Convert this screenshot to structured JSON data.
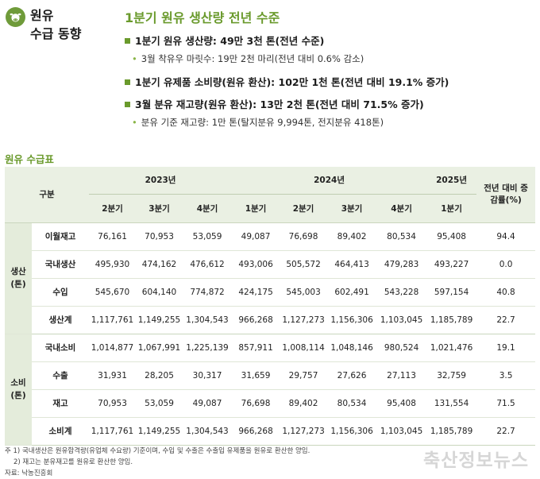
{
  "side": {
    "title_line1": "원유",
    "title_line2": "수급 동향"
  },
  "headline": "1분기 원유 생산량 전년 수준",
  "bullets": {
    "b1": "1분기 원유 생산량: 49만 3천 톤(전년 수준)",
    "b1_sub": "3월 착유우 마릿수: 19만 2천 마리(전년 대비 0.6% 감소)",
    "b2": "1분기 유제품 소비량(원유 환산): 102만 1천 톤(전년 대비 19.1% 증가)",
    "b3": "3월 분유 재고량(원유 환산): 13만 2천 톤(전년 대비 71.5% 증가)",
    "b3_sub": "분유 기준 재고량: 1만 톤(탈지분유 9,994톤, 전지분유 418톤)"
  },
  "table": {
    "title": "원유 수급표",
    "header": {
      "col_label": "구분",
      "y2023": "2023년",
      "y2024": "2024년",
      "y2025": "2025년",
      "change": "전년 대비 증감률(%)",
      "q": {
        "q2_23": "2분기",
        "q3_23": "3분기",
        "q4_23": "4분기",
        "q1_24": "1분기",
        "q2_24": "2분기",
        "q3_24": "3분기",
        "q4_24": "4분기",
        "q1_25": "1분기"
      }
    },
    "groups": {
      "prod": "생산(톤)",
      "cons": "소비(톤)"
    },
    "rows": [
      {
        "label": "이월재고",
        "v": [
          "76,161",
          "70,953",
          "53,059",
          "49,087",
          "76,698",
          "89,402",
          "80,534",
          "95,408",
          "94.4"
        ]
      },
      {
        "label": "국내생산",
        "v": [
          "495,930",
          "474,162",
          "476,612",
          "493,006",
          "505,572",
          "464,413",
          "479,283",
          "493,227",
          "0.0"
        ]
      },
      {
        "label": "수입",
        "v": [
          "545,670",
          "604,140",
          "774,872",
          "424,175",
          "545,003",
          "602,491",
          "543,228",
          "597,154",
          "40.8"
        ]
      },
      {
        "label": "생산계",
        "v": [
          "1,117,761",
          "1,149,255",
          "1,304,543",
          "966,268",
          "1,127,273",
          "1,156,306",
          "1,103,045",
          "1,185,789",
          "22.7"
        ]
      },
      {
        "label": "국내소비",
        "v": [
          "1,014,877",
          "1,067,991",
          "1,225,139",
          "857,911",
          "1,008,114",
          "1,048,146",
          "980,524",
          "1,021,476",
          "19.1"
        ]
      },
      {
        "label": "수출",
        "v": [
          "31,931",
          "28,205",
          "30,317",
          "31,659",
          "29,757",
          "27,626",
          "27,113",
          "32,759",
          "3.5"
        ]
      },
      {
        "label": "재고",
        "v": [
          "70,953",
          "53,059",
          "49,087",
          "76,698",
          "89,402",
          "80,534",
          "95,408",
          "131,554",
          "71.5"
        ]
      },
      {
        "label": "소비계",
        "v": [
          "1,117,761",
          "1,149,255",
          "1,304,543",
          "966,268",
          "1,127,273",
          "1,156,306",
          "1,103,045",
          "1,185,789",
          "22.7"
        ]
      }
    ]
  },
  "footnotes": {
    "f1": "주 1) 국내생산은 원유합격량(유업체 수요량) 기준이며, 수입 및 수출은 수출입 유제품을 원유로 환산한 양임.",
    "f2": "2) 재고는 분유재고를 원유로 환산한 양임.",
    "source": "자료: 낙농진흥회"
  },
  "watermark": "축산정보뉴스",
  "colors": {
    "accent": "#6a9a2c",
    "header_bg": "#eaf0e3",
    "group_bg": "#e4ecdb"
  }
}
